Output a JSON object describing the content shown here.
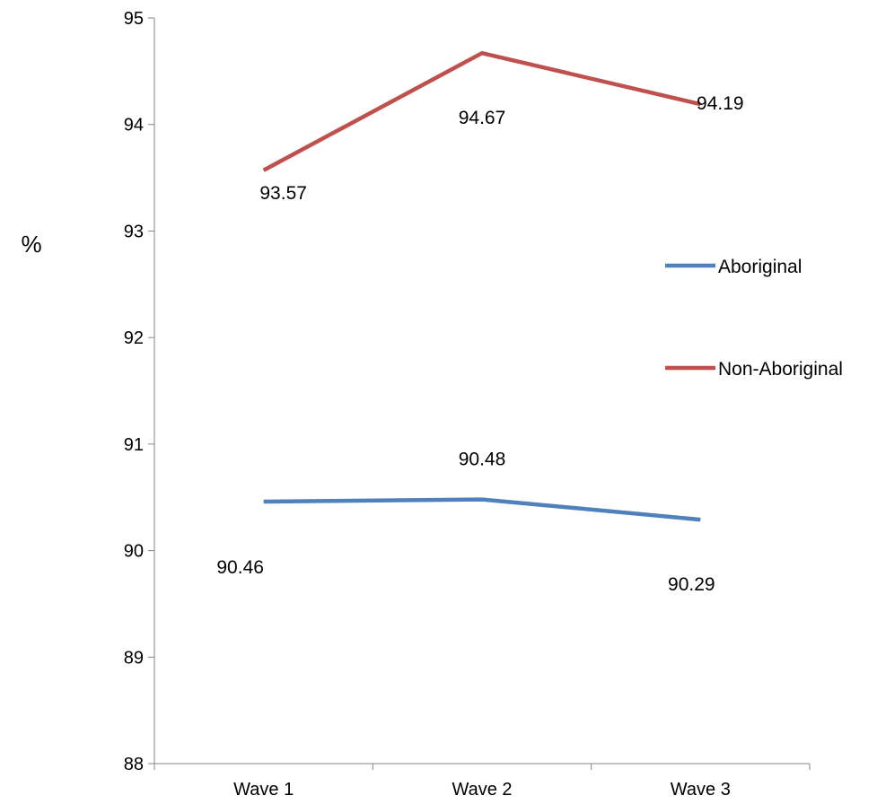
{
  "chart_data": {
    "type": "line",
    "categories": [
      "Wave 1",
      "Wave 2",
      "Wave 3"
    ],
    "series": [
      {
        "name": "Aboriginal",
        "values": [
          90.46,
          90.48,
          90.29
        ],
        "color": "#4f81bd"
      },
      {
        "name": "Non-Aboriginal",
        "values": [
          93.57,
          94.67,
          94.19
        ],
        "color": "#c0504d"
      }
    ],
    "ylabel": "%",
    "ylim": [
      88,
      95
    ],
    "yticks": [
      88,
      89,
      90,
      91,
      92,
      93,
      94,
      95
    ],
    "legend_position": "right",
    "grid": false,
    "data_labels": true
  }
}
